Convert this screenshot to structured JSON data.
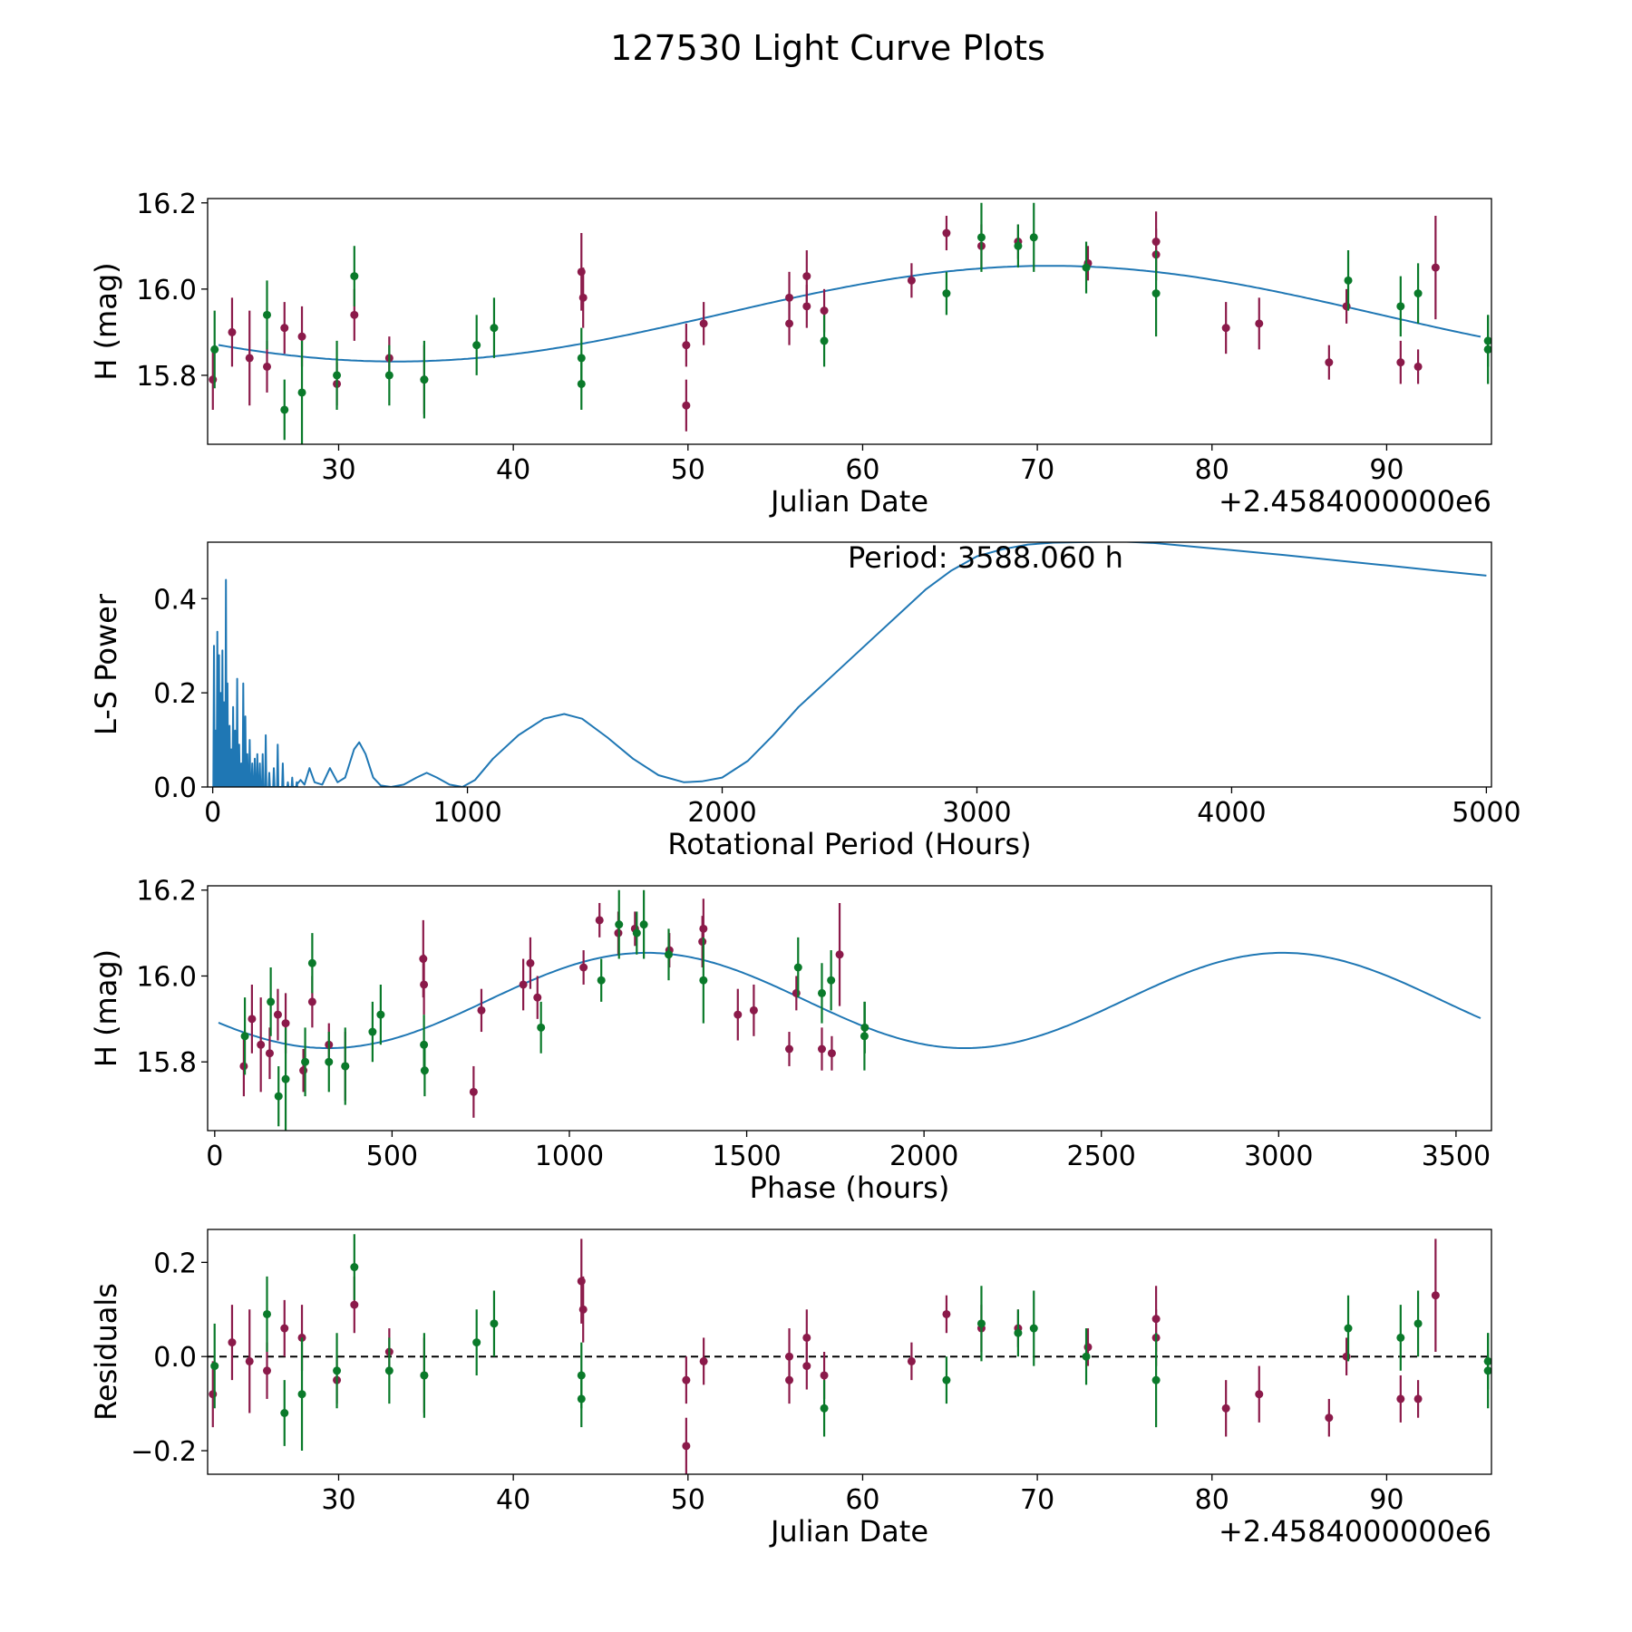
{
  "title": "127530 Light Curve Plots",
  "colors": {
    "fit": "#1f77b4",
    "band_a": "#8b1a4a",
    "band_b": "#0a7a2a",
    "zero": "#000000"
  },
  "chart_data": [
    {
      "id": "lightcurve",
      "type": "scatter",
      "xlabel": "Julian Date",
      "ylabel": "H (mag)",
      "offset_label": "+2.4584000000e6",
      "xlim": [
        22.5,
        96
      ],
      "ylim": [
        15.64,
        16.21
      ],
      "xticks": [
        30,
        40,
        50,
        60,
        70,
        80,
        90
      ],
      "yticks": [
        15.8,
        16.0,
        16.2
      ],
      "ytick_labels": [
        "15.8",
        "16.0",
        "16.2"
      ],
      "fit": {
        "name": "sinusoid fit",
        "mean": 15.943,
        "amp": 0.111,
        "period_days": 74.76,
        "peak_x": 70.7
      },
      "series": [
        {
          "name": "band_a",
          "x": [
            22.8,
            23.9,
            24.9,
            25.9,
            26.9,
            27.9,
            29.9,
            30.9,
            32.9,
            34.9,
            43.9,
            44.0,
            49.9,
            49.9,
            50.9,
            55.8,
            55.8,
            56.8,
            56.8,
            57.8,
            62.8,
            64.8,
            66.8,
            68.9,
            72.9,
            76.8,
            76.8,
            80.8,
            82.7,
            86.7,
            87.7,
            90.8,
            91.8,
            92.8
          ],
          "y": [
            15.79,
            15.9,
            15.84,
            15.82,
            15.91,
            15.89,
            15.78,
            15.94,
            15.84,
            15.79,
            16.04,
            15.98,
            15.87,
            15.73,
            15.92,
            15.98,
            15.92,
            16.03,
            15.96,
            15.95,
            16.02,
            16.13,
            16.1,
            16.11,
            16.06,
            16.08,
            16.11,
            15.91,
            15.92,
            15.83,
            15.96,
            15.83,
            15.82,
            16.05
          ],
          "err": [
            0.07,
            0.08,
            0.11,
            0.06,
            0.06,
            0.07,
            0.05,
            0.06,
            0.05,
            0.08,
            0.09,
            0.07,
            0.05,
            0.06,
            0.05,
            0.06,
            0.05,
            0.06,
            0.05,
            0.05,
            0.04,
            0.04,
            0.05,
            0.04,
            0.04,
            0.06,
            0.07,
            0.06,
            0.06,
            0.04,
            0.04,
            0.05,
            0.04,
            0.12
          ]
        },
        {
          "name": "band_b",
          "x": [
            22.9,
            25.9,
            26.9,
            27.9,
            29.9,
            30.9,
            32.9,
            34.9,
            37.9,
            38.9,
            43.9,
            43.9,
            57.8,
            64.8,
            66.8,
            68.9,
            69.8,
            72.8,
            76.8,
            87.8,
            90.8,
            91.8,
            95.8,
            95.8
          ],
          "y": [
            15.86,
            15.94,
            15.72,
            15.76,
            15.8,
            16.03,
            15.8,
            15.79,
            15.87,
            15.91,
            15.84,
            15.78,
            15.88,
            15.99,
            16.12,
            16.1,
            16.12,
            16.05,
            15.99,
            16.02,
            15.96,
            15.99,
            15.86,
            15.88
          ],
          "err": [
            0.09,
            0.08,
            0.07,
            0.12,
            0.08,
            0.07,
            0.07,
            0.09,
            0.07,
            0.07,
            0.07,
            0.06,
            0.06,
            0.05,
            0.08,
            0.05,
            0.08,
            0.06,
            0.1,
            0.07,
            0.07,
            0.07,
            0.08,
            0.06
          ]
        }
      ]
    },
    {
      "id": "periodogram",
      "type": "line",
      "xlabel": "Rotational Period (Hours)",
      "ylabel": "L-S Power",
      "annotation": "Period: 3588.060 h",
      "xlim": [
        -20,
        5020
      ],
      "ylim": [
        0,
        0.52
      ],
      "xticks": [
        0,
        1000,
        2000,
        3000,
        4000,
        5000
      ],
      "yticks": [
        0.0,
        0.2,
        0.4
      ],
      "ytick_labels": [
        "0.0",
        "0.2",
        "0.4"
      ],
      "spikes": [
        [
          5,
          0.3
        ],
        [
          12,
          0.12
        ],
        [
          18,
          0.33
        ],
        [
          25,
          0.28
        ],
        [
          32,
          0.2
        ],
        [
          38,
          0.29
        ],
        [
          44,
          0.18
        ],
        [
          52,
          0.44
        ],
        [
          58,
          0.22
        ],
        [
          66,
          0.13
        ],
        [
          73,
          0.08
        ],
        [
          80,
          0.17
        ],
        [
          88,
          0.12
        ],
        [
          96,
          0.23
        ],
        [
          104,
          0.09
        ],
        [
          112,
          0.05
        ],
        [
          120,
          0.22
        ],
        [
          128,
          0.15
        ],
        [
          136,
          0.07
        ],
        [
          145,
          0.1
        ],
        [
          155,
          0.05
        ],
        [
          165,
          0.06
        ],
        [
          175,
          0.07
        ],
        [
          185,
          0.05
        ],
        [
          196,
          0.07
        ],
        [
          208,
          0.11
        ],
        [
          222,
          0.03
        ],
        [
          240,
          0.04
        ],
        [
          255,
          0.09
        ],
        [
          275,
          0.05
        ],
        [
          295,
          0.01
        ],
        [
          312,
          0.02
        ],
        [
          330,
          0.01
        ]
      ],
      "smooth": [
        [
          330,
          0.005
        ],
        [
          345,
          0.015
        ],
        [
          360,
          0.005
        ],
        [
          380,
          0.04
        ],
        [
          400,
          0.01
        ],
        [
          430,
          0.005
        ],
        [
          460,
          0.04
        ],
        [
          490,
          0.01
        ],
        [
          520,
          0.02
        ],
        [
          555,
          0.08
        ],
        [
          575,
          0.095
        ],
        [
          600,
          0.07
        ],
        [
          630,
          0.02
        ],
        [
          660,
          0.003
        ],
        [
          700,
          0.0
        ],
        [
          750,
          0.005
        ],
        [
          800,
          0.02
        ],
        [
          840,
          0.03
        ],
        [
          880,
          0.02
        ],
        [
          930,
          0.005
        ],
        [
          980,
          0.0
        ],
        [
          1030,
          0.015
        ],
        [
          1100,
          0.06
        ],
        [
          1200,
          0.11
        ],
        [
          1300,
          0.145
        ],
        [
          1380,
          0.155
        ],
        [
          1450,
          0.145
        ],
        [
          1550,
          0.105
        ],
        [
          1650,
          0.06
        ],
        [
          1750,
          0.025
        ],
        [
          1850,
          0.01
        ],
        [
          1920,
          0.012
        ],
        [
          2000,
          0.02
        ],
        [
          2100,
          0.055
        ],
        [
          2200,
          0.11
        ],
        [
          2300,
          0.17
        ],
        [
          2400,
          0.22
        ],
        [
          2500,
          0.27
        ],
        [
          2600,
          0.32
        ],
        [
          2700,
          0.37
        ],
        [
          2800,
          0.42
        ],
        [
          2900,
          0.46
        ],
        [
          3000,
          0.49
        ],
        [
          3100,
          0.505
        ],
        [
          3200,
          0.515
        ],
        [
          3300,
          0.519
        ],
        [
          3400,
          0.52
        ],
        [
          3500,
          0.521
        ],
        [
          3588,
          0.521
        ],
        [
          3700,
          0.518
        ],
        [
          3800,
          0.513
        ],
        [
          3900,
          0.508
        ],
        [
          4000,
          0.503
        ],
        [
          4200,
          0.493
        ],
        [
          4400,
          0.482
        ],
        [
          4600,
          0.471
        ],
        [
          4800,
          0.46
        ],
        [
          5000,
          0.449
        ]
      ]
    },
    {
      "id": "phased",
      "type": "scatter",
      "xlabel": "Phase (hours)",
      "ylabel": "H (mag)",
      "xlim": [
        -20,
        3600
      ],
      "ylim": [
        15.64,
        16.21
      ],
      "xticks": [
        0,
        500,
        1000,
        1500,
        2000,
        2500,
        3000,
        3500
      ],
      "yticks": [
        15.8,
        16.0,
        16.2
      ],
      "ytick_labels": [
        "15.8",
        "16.0",
        "16.2"
      ],
      "fit": {
        "name": "phased sinusoid",
        "mean": 15.943,
        "amp": 0.111,
        "period_hours": 1794,
        "peak_x": 1218
      },
      "series": [
        {
          "name": "band_a",
          "x": [
            82,
            105,
            130,
            155,
            178,
            200,
            250,
            275,
            322,
            368,
            588,
            590,
            730,
            752,
            870,
            890,
            910,
            1040,
            1085,
            1138,
            1185,
            1282,
            1375,
            1378,
            1475,
            1520,
            1620,
            1640,
            1712,
            1740,
            1762
          ],
          "y": [
            15.79,
            15.9,
            15.84,
            15.82,
            15.91,
            15.89,
            15.78,
            15.94,
            15.84,
            15.79,
            16.04,
            15.98,
            15.73,
            15.92,
            15.98,
            16.03,
            15.95,
            16.02,
            16.13,
            16.1,
            16.11,
            16.06,
            16.08,
            16.11,
            15.91,
            15.92,
            15.83,
            15.96,
            15.83,
            15.82,
            16.05
          ],
          "err": [
            0.07,
            0.08,
            0.11,
            0.06,
            0.06,
            0.07,
            0.05,
            0.06,
            0.05,
            0.08,
            0.09,
            0.07,
            0.06,
            0.05,
            0.06,
            0.06,
            0.05,
            0.04,
            0.04,
            0.05,
            0.04,
            0.04,
            0.06,
            0.07,
            0.06,
            0.06,
            0.04,
            0.04,
            0.05,
            0.04,
            0.12
          ]
        },
        {
          "name": "band_b",
          "x": [
            85,
            158,
            180,
            200,
            255,
            275,
            322,
            368,
            445,
            468,
            590,
            592,
            920,
            1090,
            1140,
            1190,
            1210,
            1280,
            1378,
            1645,
            1712,
            1738,
            1832,
            1833
          ],
          "y": [
            15.86,
            15.94,
            15.72,
            15.76,
            15.8,
            16.03,
            15.8,
            15.79,
            15.87,
            15.91,
            15.84,
            15.78,
            15.88,
            15.99,
            16.12,
            16.1,
            16.12,
            16.05,
            15.99,
            16.02,
            15.96,
            15.99,
            15.86,
            15.88
          ],
          "err": [
            0.09,
            0.08,
            0.07,
            0.12,
            0.08,
            0.07,
            0.07,
            0.09,
            0.07,
            0.07,
            0.07,
            0.06,
            0.06,
            0.05,
            0.08,
            0.05,
            0.08,
            0.06,
            0.1,
            0.07,
            0.07,
            0.07,
            0.08,
            0.06
          ]
        }
      ]
    },
    {
      "id": "residuals",
      "type": "scatter",
      "xlabel": "Julian Date",
      "ylabel": "Residuals",
      "offset_label": "+2.4584000000e6",
      "xlim": [
        22.5,
        96
      ],
      "ylim": [
        -0.25,
        0.27
      ],
      "xticks": [
        30,
        40,
        50,
        60,
        70,
        80,
        90
      ],
      "yticks": [
        -0.2,
        0.0,
        0.2
      ],
      "ytick_labels": [
        "−0.2",
        "0.0",
        "0.2"
      ],
      "zero_line": 0,
      "series": [
        {
          "name": "band_a",
          "x": [
            22.8,
            23.9,
            24.9,
            25.9,
            26.9,
            27.9,
            29.9,
            30.9,
            32.9,
            34.9,
            43.9,
            44.0,
            49.9,
            49.9,
            50.9,
            55.8,
            55.8,
            56.8,
            56.8,
            57.8,
            62.8,
            64.8,
            66.8,
            68.9,
            72.9,
            76.8,
            76.8,
            80.8,
            82.7,
            86.7,
            87.7,
            90.8,
            91.8,
            92.8
          ],
          "y": [
            -0.08,
            0.03,
            -0.01,
            -0.03,
            0.06,
            0.04,
            -0.05,
            0.11,
            0.01,
            -0.04,
            0.16,
            0.1,
            -0.05,
            -0.19,
            -0.01,
            0.0,
            -0.05,
            0.04,
            -0.02,
            -0.04,
            -0.01,
            0.09,
            0.06,
            0.06,
            0.02,
            0.04,
            0.08,
            -0.11,
            -0.08,
            -0.13,
            0.0,
            -0.09,
            -0.09,
            0.13
          ],
          "err": [
            0.07,
            0.08,
            0.11,
            0.06,
            0.06,
            0.07,
            0.05,
            0.06,
            0.05,
            0.08,
            0.09,
            0.07,
            0.05,
            0.06,
            0.05,
            0.06,
            0.05,
            0.06,
            0.05,
            0.05,
            0.04,
            0.04,
            0.05,
            0.04,
            0.04,
            0.06,
            0.07,
            0.06,
            0.06,
            0.04,
            0.04,
            0.05,
            0.04,
            0.12
          ]
        },
        {
          "name": "band_b",
          "x": [
            22.9,
            25.9,
            26.9,
            27.9,
            29.9,
            30.9,
            32.9,
            34.9,
            37.9,
            38.9,
            43.9,
            43.9,
            57.8,
            64.8,
            66.8,
            68.9,
            69.8,
            72.8,
            76.8,
            87.8,
            90.8,
            91.8,
            95.8,
            95.8
          ],
          "y": [
            -0.02,
            0.09,
            -0.12,
            -0.08,
            -0.03,
            0.19,
            -0.03,
            -0.04,
            0.03,
            0.07,
            -0.04,
            -0.09,
            -0.11,
            -0.05,
            0.07,
            0.05,
            0.06,
            0.0,
            -0.05,
            0.06,
            0.04,
            0.07,
            -0.03,
            -0.01
          ],
          "err": [
            0.09,
            0.08,
            0.07,
            0.12,
            0.08,
            0.07,
            0.07,
            0.09,
            0.07,
            0.07,
            0.07,
            0.06,
            0.06,
            0.05,
            0.08,
            0.05,
            0.08,
            0.06,
            0.1,
            0.07,
            0.07,
            0.07,
            0.08,
            0.06
          ]
        }
      ]
    }
  ]
}
